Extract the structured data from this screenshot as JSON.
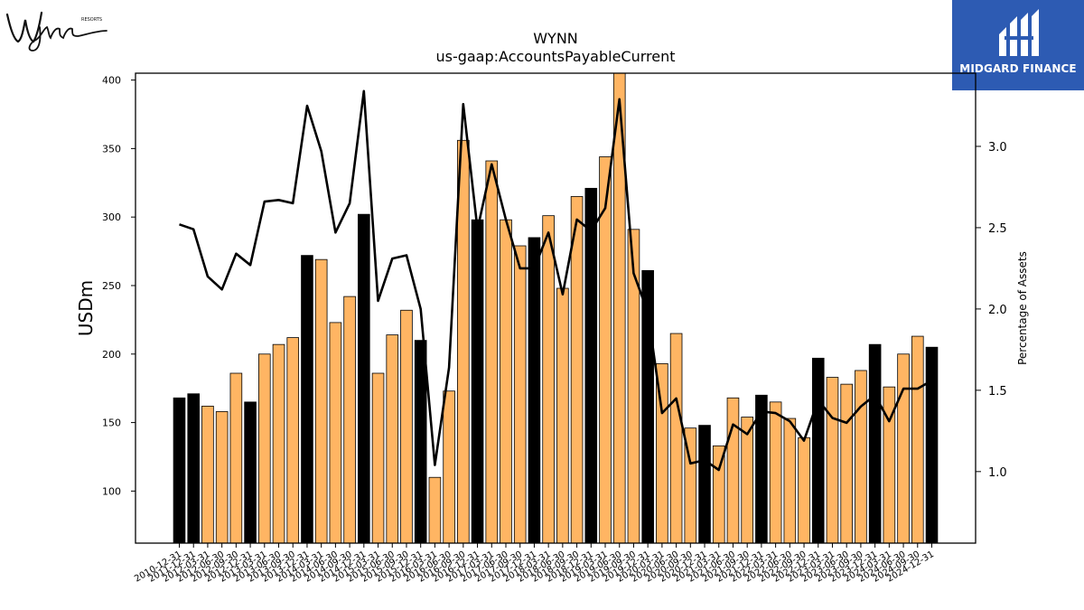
{
  "branding": {
    "left_logo": "Wynn RESORTS",
    "right_logo_text": "MIDGARD FINANCE"
  },
  "colors": {
    "bar_highlight": "#000000",
    "bar_regular": "#ffb563",
    "bar_edge": "#000000",
    "line": "#000000",
    "logo_background": "#2d5bb3"
  },
  "chart_data": {
    "type": "bar",
    "title": "WYNN",
    "subtitle": "us-gaap:AccountsPayableCurrent",
    "ylabel": "USDm",
    "y2label": "Percentage of Assets",
    "ylim": [
      62,
      405
    ],
    "y2lim": [
      0.56,
      3.45
    ],
    "yticks": [
      100,
      150,
      200,
      250,
      300,
      350,
      400
    ],
    "y2ticks": [
      1.0,
      1.5,
      2.0,
      2.5,
      3.0
    ],
    "y2tick_labels": [
      "1.0",
      "1.5",
      "2.0",
      "2.5",
      "3.0"
    ],
    "grid": false,
    "categories": [
      "2010-12-31",
      "2011-12-31",
      "2012-03-31",
      "2012-06-30",
      "2012-09-30",
      "2012-12-31",
      "2013-03-31",
      "2013-06-30",
      "2013-09-30",
      "2013-12-31",
      "2014-03-31",
      "2014-06-30",
      "2014-09-30",
      "2014-12-31",
      "2015-03-31",
      "2015-06-30",
      "2015-09-30",
      "2015-12-31",
      "2016-03-31",
      "2016-06-30",
      "2016-09-30",
      "2016-12-31",
      "2017-03-31",
      "2017-06-30",
      "2017-09-30",
      "2017-12-31",
      "2018-03-31",
      "2018-06-30",
      "2018-09-30",
      "2018-12-31",
      "2019-03-31",
      "2019-06-30",
      "2019-09-30",
      "2019-12-31",
      "2020-03-31",
      "2020-06-30",
      "2020-09-30",
      "2020-12-31",
      "2021-03-31",
      "2021-06-30",
      "2021-09-30",
      "2021-12-31",
      "2022-03-31",
      "2022-06-30",
      "2022-09-30",
      "2022-12-31",
      "2023-03-31",
      "2023-06-30",
      "2023-09-30",
      "2023-12-31",
      "2024-03-31",
      "2024-06-30",
      "2024-09-30",
      "2024-12-31"
    ],
    "xtick_labels": [
      "2010-12-31",
      "2011-12-31",
      "2012-03-31",
      "2012-06-30",
      "2012-09-30",
      "2012-12-31",
      "2013-03-31",
      "2013-06-30",
      "2013-09-30",
      "2013-12-31",
      "2014-03-31",
      "2014-06-30",
      "2014-09-30",
      "2014-12-31",
      "2015-03-31",
      "2015-06-30",
      "2015-09-30",
      "2015-12-31",
      "2016-03-31",
      "2016-06-30",
      "2016-09-30",
      "2016-12-31",
      "2017-03-31",
      "2017-06-30",
      "2017-09-30",
      "2017-12-31",
      "2018-03-31",
      "2018-06-30",
      "2018-09-30",
      "2018-12-31",
      "2019-03-31",
      "2019-06-30",
      "2019-09-30",
      "2019-12-31",
      "2020-03-31",
      "2020-06-30",
      "2020-09-30",
      "2020-12-31",
      "2021-03-31",
      "2021-06-30",
      "2021-09-30",
      "2021-12-31",
      "2022-03-31",
      "2022-06-30",
      "2022-09-30",
      "2022-12-31",
      "2023-03-31",
      "2023-06-30",
      "2023-09-30",
      "2023-12-31",
      "2024-03-31",
      "2024-06-30",
      "2024-09-30",
      "2024-12-31"
    ],
    "series": [
      {
        "type": "bar",
        "axis": "left",
        "values": [
          168,
          171,
          162,
          158,
          186,
          165,
          200,
          207,
          212,
          272,
          269,
          223,
          242,
          302,
          186,
          214,
          232,
          210,
          110,
          173,
          356,
          298,
          341,
          298,
          279,
          285,
          301,
          248,
          315,
          321,
          344,
          410,
          291,
          261,
          193,
          215,
          146,
          148,
          133,
          168,
          154,
          170,
          165,
          153,
          139,
          197,
          183,
          178,
          188,
          207,
          176,
          200,
          213,
          205
        ],
        "highlight": [
          true,
          true,
          false,
          false,
          false,
          true,
          false,
          false,
          false,
          true,
          false,
          false,
          false,
          true,
          false,
          false,
          false,
          true,
          false,
          false,
          false,
          true,
          false,
          false,
          false,
          true,
          false,
          false,
          false,
          true,
          false,
          false,
          false,
          true,
          false,
          false,
          false,
          true,
          false,
          false,
          false,
          true,
          false,
          false,
          false,
          true,
          false,
          false,
          false,
          true,
          false,
          false,
          false,
          true
        ]
      },
      {
        "type": "line",
        "axis": "right",
        "values": [
          2.52,
          2.49,
          2.2,
          2.12,
          2.34,
          2.27,
          2.66,
          2.67,
          2.65,
          3.25,
          2.97,
          2.47,
          2.65,
          3.34,
          2.05,
          2.31,
          2.33,
          2.0,
          1.04,
          1.64,
          3.26,
          2.49,
          2.89,
          2.55,
          2.25,
          2.25,
          2.47,
          2.09,
          2.55,
          2.48,
          2.62,
          3.29,
          2.22,
          1.98,
          1.36,
          1.45,
          1.05,
          1.07,
          1.01,
          1.29,
          1.23,
          1.37,
          1.36,
          1.31,
          1.19,
          1.44,
          1.33,
          1.3,
          1.4,
          1.47,
          1.31,
          1.51,
          1.51,
          1.56
        ]
      }
    ]
  }
}
